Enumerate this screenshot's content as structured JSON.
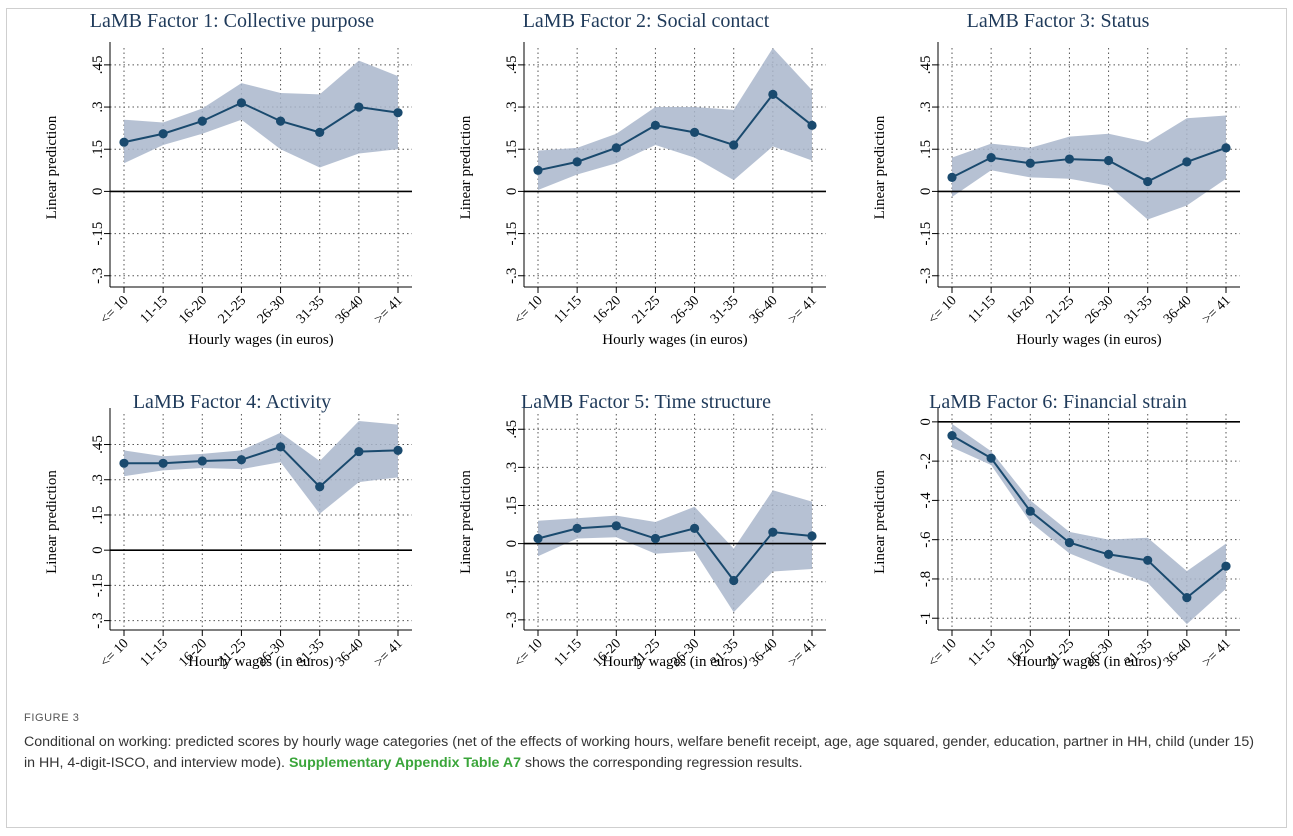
{
  "chart_data": [
    {
      "type": "line",
      "title": "LaMB Factor 1: Collective purpose",
      "xlabel": "Hourly wages (in euros)",
      "ylabel": "Linear prediction",
      "categories": [
        "<= 10",
        "11-15",
        "16-20",
        "21-25",
        "26-30",
        "31-35",
        "36-40",
        ">= 41"
      ],
      "yticks": [
        ".45",
        ".3",
        ".15",
        "0",
        "-.15",
        "-.3"
      ],
      "ytick_values": [
        0.45,
        0.3,
        0.15,
        0,
        -0.15,
        -0.3
      ],
      "ylim": [
        -0.34,
        0.51
      ],
      "values": [
        0.175,
        0.205,
        0.25,
        0.315,
        0.25,
        0.21,
        0.3,
        0.28
      ],
      "ci_upper": [
        0.255,
        0.245,
        0.295,
        0.385,
        0.35,
        0.345,
        0.465,
        0.41
      ],
      "ci_lower": [
        0.1,
        0.165,
        0.205,
        0.255,
        0.15,
        0.085,
        0.135,
        0.15
      ],
      "grid": true
    },
    {
      "type": "line",
      "title": "LaMB Factor 2: Social contact",
      "xlabel": "Hourly wages (in euros)",
      "ylabel": "Linear prediction",
      "categories": [
        "<= 10",
        "11-15",
        "16-20",
        "21-25",
        "26-30",
        "31-35",
        "36-40",
        ">= 41"
      ],
      "yticks": [
        ".45",
        ".3",
        ".15",
        "0",
        "-.15",
        "-.3"
      ],
      "ytick_values": [
        0.45,
        0.3,
        0.15,
        0,
        -0.15,
        -0.3
      ],
      "ylim": [
        -0.34,
        0.51
      ],
      "values": [
        0.075,
        0.105,
        0.155,
        0.235,
        0.21,
        0.165,
        0.345,
        0.235
      ],
      "ci_upper": [
        0.145,
        0.155,
        0.205,
        0.3,
        0.3,
        0.29,
        0.51,
        0.36
      ],
      "ci_lower": [
        0.005,
        0.06,
        0.1,
        0.165,
        0.12,
        0.04,
        0.16,
        0.11
      ],
      "grid": true
    },
    {
      "type": "line",
      "title": "LaMB Factor 3: Status",
      "xlabel": "Hourly wages (in euros)",
      "ylabel": "Linear prediction",
      "categories": [
        "<= 10",
        "11-15",
        "16-20",
        "21-25",
        "26-30",
        "31-35",
        "36-40",
        ">= 41"
      ],
      "yticks": [
        ".45",
        ".3",
        ".15",
        "0",
        "-.15",
        "-.3"
      ],
      "ytick_values": [
        0.45,
        0.3,
        0.15,
        0,
        -0.15,
        -0.3
      ],
      "ylim": [
        -0.34,
        0.51
      ],
      "values": [
        0.05,
        0.12,
        0.1,
        0.115,
        0.11,
        0.035,
        0.105,
        0.155
      ],
      "ci_upper": [
        0.12,
        0.17,
        0.155,
        0.195,
        0.205,
        0.175,
        0.26,
        0.27
      ],
      "ci_lower": [
        -0.02,
        0.075,
        0.05,
        0.045,
        0.02,
        -0.1,
        -0.05,
        0.045
      ],
      "grid": true
    },
    {
      "type": "line",
      "title": "LaMB Factor 4: Activity",
      "xlabel": "Hourly wages (in euros)",
      "ylabel": "Linear prediction",
      "categories": [
        "<= 10",
        "11-15",
        "16-20",
        "21-25",
        "26-30",
        "31-35",
        "36-40",
        ">= 41"
      ],
      "yticks": [
        ".45",
        ".3",
        ".15",
        "0",
        "-.15",
        "-.3"
      ],
      "ytick_values": [
        0.45,
        0.3,
        0.15,
        0,
        -0.15,
        -0.3
      ],
      "ylim": [
        -0.34,
        0.58
      ],
      "values": [
        0.37,
        0.37,
        0.38,
        0.385,
        0.44,
        0.27,
        0.42,
        0.425
      ],
      "ci_upper": [
        0.425,
        0.4,
        0.41,
        0.425,
        0.5,
        0.38,
        0.55,
        0.535
      ],
      "ci_lower": [
        0.315,
        0.34,
        0.35,
        0.345,
        0.375,
        0.155,
        0.29,
        0.31
      ],
      "grid": true
    },
    {
      "type": "line",
      "title": "LaMB Factor 5: Time structure",
      "xlabel": "Hourly wages (in euros)",
      "ylabel": "Linear prediction",
      "categories": [
        "<= 10",
        "11-15",
        "16-20",
        "21-25",
        "26-30",
        "31-35",
        "36-40",
        ">= 41"
      ],
      "yticks": [
        ".45",
        ".3",
        ".15",
        "0",
        "-.15",
        "-.3"
      ],
      "ytick_values": [
        0.45,
        0.3,
        0.15,
        0,
        -0.15,
        -0.3
      ],
      "ylim": [
        -0.34,
        0.51
      ],
      "values": [
        0.02,
        0.06,
        0.07,
        0.02,
        0.06,
        -0.145,
        0.045,
        0.03
      ],
      "ci_upper": [
        0.09,
        0.1,
        0.11,
        0.085,
        0.145,
        -0.02,
        0.21,
        0.165
      ],
      "ci_lower": [
        -0.05,
        0.02,
        0.025,
        -0.04,
        -0.03,
        -0.27,
        -0.11,
        -0.1
      ],
      "grid": true
    },
    {
      "type": "line",
      "title": "LaMB Factor 6: Financial strain",
      "xlabel": "Hourly wages (in euros)",
      "ylabel": "Linear prediction",
      "categories": [
        "<= 10",
        "11-15",
        "16-20",
        "21-25",
        "26-30",
        "31-35",
        "36-40",
        ">= 41"
      ],
      "yticks": [
        "0",
        "-.2",
        "-.4",
        "-.6",
        "-.8",
        "-1"
      ],
      "ytick_values": [
        0,
        -0.2,
        -0.4,
        -0.6,
        -0.8,
        -1
      ],
      "ylim": [
        -1.06,
        0.04
      ],
      "values": [
        -0.07,
        -0.185,
        -0.455,
        -0.615,
        -0.675,
        -0.705,
        -0.895,
        -0.735
      ],
      "ci_upper": [
        -0.01,
        -0.15,
        -0.4,
        -0.56,
        -0.6,
        -0.59,
        -0.76,
        -0.62
      ],
      "ci_lower": [
        -0.13,
        -0.22,
        -0.51,
        -0.67,
        -0.75,
        -0.82,
        -1.03,
        -0.85
      ],
      "grid": true
    }
  ],
  "caption": {
    "label": "FIGURE 3",
    "text_before": "Conditional on working: predicted scores by hourly wage categories (net of the effects of working hours, welfare benefit receipt, age, age squared, gender, education, partner in HH, child (under 15) in HH, 4-digit-ISCO, and interview mode). ",
    "link": "Supplementary Appendix Table A7",
    "text_after": " shows the corresponding regression results."
  }
}
